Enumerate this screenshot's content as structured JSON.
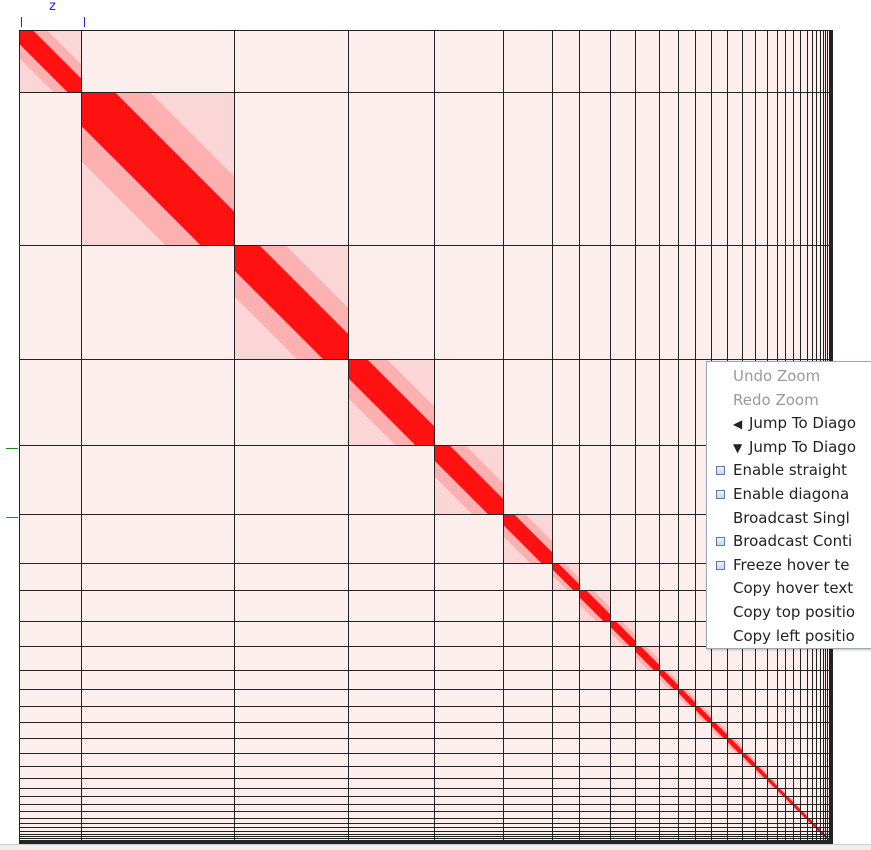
{
  "top_ruler": {
    "label": "z"
  },
  "heatmap": {
    "type": "contact-matrix",
    "color_high": "#ff0000",
    "color_low": "#fdeeee",
    "grid_color": "#222222",
    "boundaries": [
      0,
      62,
      215,
      329,
      415,
      484,
      533,
      560,
      591,
      616,
      640,
      659,
      676,
      692,
      708,
      723,
      736,
      748,
      758,
      766,
      774,
      781,
      788,
      793,
      797,
      801,
      804,
      806,
      808,
      810,
      811,
      812,
      813,
      814
    ]
  },
  "context_menu": {
    "items": [
      {
        "label": "Undo Zoom",
        "enabled": false,
        "type": "action"
      },
      {
        "label": "Redo Zoom",
        "enabled": false,
        "type": "action"
      },
      {
        "label": "Jump To Diago",
        "enabled": true,
        "type": "arrow-left"
      },
      {
        "label": "Jump To Diago",
        "enabled": true,
        "type": "arrow-down"
      },
      {
        "label": "Enable straight",
        "enabled": true,
        "type": "checkbox",
        "checked": false
      },
      {
        "label": "Enable diagona",
        "enabled": true,
        "type": "checkbox",
        "checked": false
      },
      {
        "label": "Broadcast Singl",
        "enabled": true,
        "type": "action"
      },
      {
        "label": "Broadcast Conti",
        "enabled": true,
        "type": "checkbox",
        "checked": false
      },
      {
        "label": "Freeze hover te",
        "enabled": true,
        "type": "checkbox",
        "checked": false
      },
      {
        "label": "Copy hover text",
        "enabled": true,
        "type": "action"
      },
      {
        "label": "Copy top positio",
        "enabled": true,
        "type": "action"
      },
      {
        "label": "Copy left positio",
        "enabled": true,
        "type": "action"
      }
    ]
  },
  "icons": {
    "arrow_left": "◀",
    "arrow_down": "▼"
  }
}
